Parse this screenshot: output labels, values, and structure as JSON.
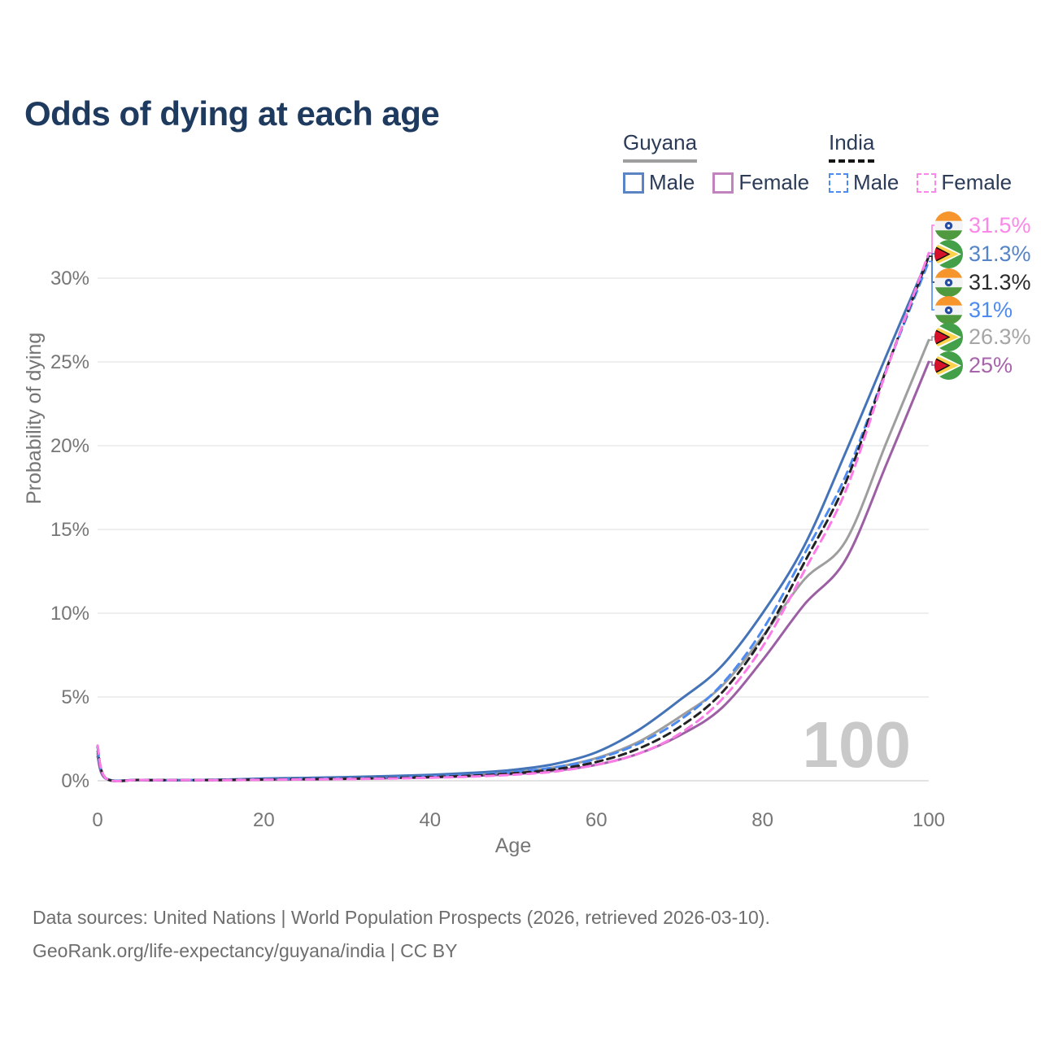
{
  "title": "Odds of dying at each age",
  "legend": {
    "groups": [
      {
        "name": "Guyana",
        "line_style": "solid",
        "underline_color": "#9e9e9e",
        "items": [
          {
            "label": "Male",
            "color": "#5b84c4"
          },
          {
            "label": "Female",
            "color": "#c083bd"
          }
        ]
      },
      {
        "name": "India",
        "line_style": "dashed",
        "underline_color": "#161616",
        "items": [
          {
            "label": "Male",
            "color": "#4d8bf0"
          },
          {
            "label": "Female",
            "color": "#fb87e8"
          }
        ]
      }
    ]
  },
  "watermark_age": "100",
  "colors": {
    "title": "#1e3a5f",
    "axis_text": "#767676",
    "gridline": "#eeeeee",
    "baseline": "#e3e3e3",
    "footer_text": "#6e6e6e",
    "watermark": "#c9c9c9"
  },
  "chart_data": {
    "type": "line",
    "title": "Odds of dying at each age",
    "xlabel": "Age",
    "ylabel": "Probability of dying",
    "xlim": [
      0,
      100
    ],
    "ylim_percent": [
      0,
      31.5
    ],
    "grid": "horizontal",
    "legend_position": "top-right",
    "xticks": {
      "values": [
        0,
        20,
        40,
        60,
        80,
        100
      ],
      "labels": [
        "0",
        "20",
        "40",
        "60",
        "80",
        "100"
      ]
    },
    "yticks": {
      "values": [
        0,
        5,
        10,
        15,
        20,
        25,
        30
      ],
      "labels": [
        "0%",
        "5%",
        "10%",
        "15%",
        "20%",
        "25%",
        "30%"
      ]
    },
    "x_ages": [
      0,
      1,
      5,
      10,
      15,
      20,
      25,
      30,
      35,
      40,
      45,
      50,
      55,
      60,
      65,
      70,
      75,
      80,
      85,
      90,
      95,
      100
    ],
    "series": [
      {
        "id": "guyana-total",
        "name": "Guyana",
        "country": "guyana",
        "color": "#9e9e9e",
        "dash": null,
        "end_value_percent": 26.3,
        "values": [
          1.6,
          0.13,
          0.05,
          0.035,
          0.055,
          0.1,
          0.13,
          0.17,
          0.21,
          0.28,
          0.38,
          0.52,
          0.8,
          1.35,
          2.3,
          3.8,
          5.6,
          8.6,
          12.0,
          14.3,
          20.3,
          26.3
        ]
      },
      {
        "id": "guyana-female",
        "name": "Guyana Female",
        "country": "guyana",
        "color": "#9d5fa4",
        "dash": null,
        "end_value_percent": 25.0,
        "values": [
          1.45,
          0.12,
          0.04,
          0.03,
          0.04,
          0.06,
          0.08,
          0.11,
          0.15,
          0.2,
          0.28,
          0.4,
          0.6,
          0.95,
          1.6,
          2.7,
          4.3,
          7.2,
          10.5,
          13.2,
          19.0,
          25.0
        ]
      },
      {
        "id": "guyana-male",
        "name": "Guyana Male",
        "country": "guyana",
        "color": "#4573b8",
        "dash": null,
        "end_value_percent": 31.3,
        "values": [
          1.75,
          0.15,
          0.05,
          0.04,
          0.07,
          0.13,
          0.17,
          0.22,
          0.28,
          0.35,
          0.47,
          0.65,
          1.0,
          1.7,
          3.0,
          4.8,
          6.8,
          10.0,
          14.0,
          19.6,
          25.5,
          31.3
        ]
      },
      {
        "id": "india-male",
        "name": "India Male",
        "country": "india",
        "color": "#4d8bf0",
        "dash": "10 7",
        "end_value_percent": 31.0,
        "values": [
          2.0,
          0.15,
          0.05,
          0.04,
          0.05,
          0.09,
          0.11,
          0.14,
          0.19,
          0.26,
          0.36,
          0.52,
          0.8,
          1.3,
          2.2,
          3.6,
          5.7,
          9.0,
          13.5,
          18.2,
          24.7,
          31.0
        ]
      },
      {
        "id": "india-total",
        "name": "India",
        "country": "india",
        "color": "#222222",
        "dash": "9 6",
        "end_value_percent": 31.3,
        "values": [
          2.05,
          0.15,
          0.05,
          0.038,
          0.045,
          0.075,
          0.095,
          0.12,
          0.16,
          0.22,
          0.3,
          0.44,
          0.68,
          1.12,
          1.9,
          3.2,
          5.2,
          8.5,
          13.0,
          17.8,
          24.7,
          31.3
        ]
      },
      {
        "id": "india-female",
        "name": "India Female",
        "country": "india",
        "color": "#fb7ce6",
        "dash": "10 7",
        "end_value_percent": 31.5,
        "values": [
          2.1,
          0.15,
          0.05,
          0.035,
          0.04,
          0.06,
          0.08,
          0.1,
          0.13,
          0.18,
          0.25,
          0.36,
          0.55,
          0.95,
          1.6,
          2.8,
          4.8,
          8.0,
          12.5,
          17.3,
          24.6,
          31.5
        ]
      }
    ],
    "end_labels": [
      {
        "series": "india-female",
        "flag": "india",
        "text": "31.5%",
        "color": "#fb87e8"
      },
      {
        "series": "guyana-male",
        "flag": "guyana",
        "text": "31.3%",
        "color": "#5585c8"
      },
      {
        "series": "india-total",
        "flag": "india",
        "text": "31.3%",
        "color": "#2b2b2b"
      },
      {
        "series": "india-male",
        "flag": "india",
        "text": "31%",
        "color": "#4d8bf0"
      },
      {
        "series": "guyana-total",
        "flag": "guyana",
        "text": "26.3%",
        "color": "#a6a6a6"
      },
      {
        "series": "guyana-female",
        "flag": "guyana",
        "text": "25%",
        "color": "#a763ab"
      }
    ]
  },
  "footer": {
    "line1": "Data sources: United Nations | World Population Prospects (2026, retrieved 2026-03-10).",
    "line2": "GeoRank.org/life-expectancy/guyana/india | CC BY"
  }
}
